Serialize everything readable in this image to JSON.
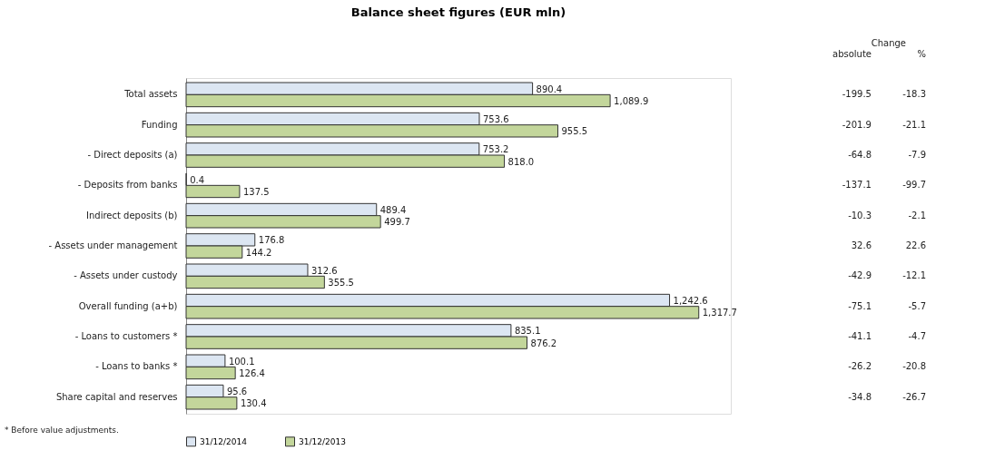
{
  "chart_data": {
    "type": "bar",
    "orientation": "horizontal",
    "title": "Balance sheet figures (EUR mln)",
    "categories": [
      "Total assets",
      "Funding",
      "- Direct deposits (a)",
      "- Deposits from banks",
      "Indirect deposits (b)",
      "- Assets under management",
      "- Assets under custody",
      "Overall funding (a+b)",
      "- Loans to customers *",
      "- Loans to banks *",
      "Share capital and reserves"
    ],
    "series": [
      {
        "name": "31/12/2014",
        "color": "#dce6f2",
        "values": [
          890.4,
          753.6,
          753.2,
          0.4,
          489.4,
          176.8,
          312.6,
          1242.6,
          835.1,
          100.1,
          95.6
        ],
        "value_labels": [
          "890.4",
          "753.6",
          "753.2",
          "0.4",
          "489.4",
          "176.8",
          "312.6",
          "1,242.6",
          "835.1",
          "100.1",
          "95.6"
        ]
      },
      {
        "name": "31/12/2013",
        "color": "#c3d69b",
        "values": [
          1089.9,
          955.5,
          818.0,
          137.5,
          499.7,
          144.2,
          355.5,
          1317.7,
          876.2,
          126.4,
          130.4
        ],
        "value_labels": [
          "1,089.9",
          "955.5",
          "818.0",
          "137.5",
          "499.7",
          "144.2",
          "355.5",
          "1,317.7",
          "876.2",
          "126.4",
          "130.4"
        ]
      }
    ],
    "legend": "bottom",
    "grid": false,
    "annotations": [
      "Change",
      "absolute",
      "%",
      "-199.5",
      "-18.3",
      "-201.9",
      "-21.1",
      "-64.8",
      "-7.9",
      "-137.1",
      "-99.7",
      "-10.3",
      "-2.1",
      "32.6",
      "22.6",
      "-42.9",
      "-12.1",
      "-75.1",
      "-5.7",
      "-41.1",
      "-4.7",
      "-26.2",
      "-20.8",
      "-34.8",
      "-26.7",
      "* Before value adjustments."
    ]
  }
}
